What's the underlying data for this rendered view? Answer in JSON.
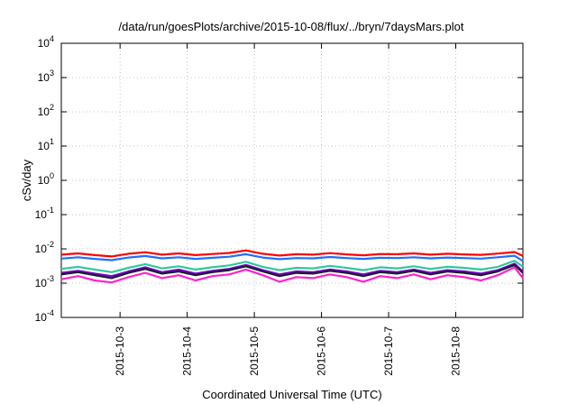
{
  "chart_data": {
    "type": "line",
    "title": "/data/run/goesPlots/archive/2015-10-08/flux/../bryn/7daysMars.plot",
    "xlabel": "Coordinated Universal Time (UTC)",
    "ylabel": "cSv/day",
    "yscale": "log",
    "ylim": [
      0.0001,
      10000
    ],
    "xlim": [
      "2015-10-02T03:00",
      "2015-10-09T00:00"
    ],
    "grid": true,
    "y_ticks": [
      {
        "value": 0.0001,
        "base": "10",
        "exp": "-4"
      },
      {
        "value": 0.001,
        "base": "10",
        "exp": "-3"
      },
      {
        "value": 0.01,
        "base": "10",
        "exp": "-2"
      },
      {
        "value": 0.1,
        "base": "10",
        "exp": "-1"
      },
      {
        "value": 1,
        "base": "10",
        "exp": "0"
      },
      {
        "value": 10,
        "base": "10",
        "exp": "1"
      },
      {
        "value": 100,
        "base": "10",
        "exp": "2"
      },
      {
        "value": 1000,
        "base": "10",
        "exp": "3"
      },
      {
        "value": 10000,
        "base": "10",
        "exp": "4"
      }
    ],
    "x_ticks": [
      "2015-10-3",
      "2015-10-4",
      "2015-10-5",
      "2015-10-6",
      "2015-10-7",
      "2015-10-8"
    ],
    "x_tick_times": [
      "2015-10-03T00:00",
      "2015-10-04T00:00",
      "2015-10-05T00:00",
      "2015-10-06T00:00",
      "2015-10-07T00:00",
      "2015-10-08T00:00"
    ],
    "x_times": [
      "2015-10-02T03:00",
      "2015-10-02T09:00",
      "2015-10-02T15:00",
      "2015-10-02T21:00",
      "2015-10-03T03:00",
      "2015-10-03T09:00",
      "2015-10-03T15:00",
      "2015-10-03T21:00",
      "2015-10-04T03:00",
      "2015-10-04T09:00",
      "2015-10-04T15:00",
      "2015-10-04T21:00",
      "2015-10-05T03:00",
      "2015-10-05T09:00",
      "2015-10-05T15:00",
      "2015-10-05T21:00",
      "2015-10-06T03:00",
      "2015-10-06T09:00",
      "2015-10-06T15:00",
      "2015-10-06T21:00",
      "2015-10-07T03:00",
      "2015-10-07T09:00",
      "2015-10-07T15:00",
      "2015-10-07T21:00",
      "2015-10-08T03:00",
      "2015-10-08T09:00",
      "2015-10-08T15:00",
      "2015-10-08T21:00",
      "2015-10-09T00:00"
    ],
    "series": [
      {
        "color": "#ff0000",
        "values": [
          0.0068,
          0.0074,
          0.0066,
          0.006,
          0.0072,
          0.008,
          0.0068,
          0.0074,
          0.0066,
          0.0071,
          0.0076,
          0.009,
          0.0072,
          0.0064,
          0.007,
          0.0068,
          0.0075,
          0.0069,
          0.0065,
          0.0071,
          0.007,
          0.0074,
          0.0068,
          0.0072,
          0.0069,
          0.0067,
          0.0073,
          0.0081,
          0.0062
        ]
      },
      {
        "color": "#1f6fff",
        "values": [
          0.0052,
          0.0057,
          0.0051,
          0.0047,
          0.0056,
          0.0062,
          0.0053,
          0.0057,
          0.0051,
          0.0055,
          0.0059,
          0.007,
          0.0056,
          0.005,
          0.0054,
          0.0053,
          0.0058,
          0.0054,
          0.0051,
          0.0055,
          0.0054,
          0.0057,
          0.0053,
          0.0056,
          0.0054,
          0.0052,
          0.0057,
          0.0063,
          0.0044
        ]
      },
      {
        "color": "#2ec99e",
        "values": [
          0.0026,
          0.003,
          0.0025,
          0.0021,
          0.0028,
          0.0036,
          0.0027,
          0.0031,
          0.0025,
          0.0029,
          0.0033,
          0.0042,
          0.003,
          0.0024,
          0.0028,
          0.0027,
          0.0032,
          0.0028,
          0.0024,
          0.0029,
          0.0027,
          0.0031,
          0.0026,
          0.003,
          0.0028,
          0.0025,
          0.003,
          0.0045,
          0.003
        ]
      },
      {
        "color": "#7a00c8",
        "values": [
          0.002,
          0.0023,
          0.0019,
          0.0016,
          0.0022,
          0.0029,
          0.0021,
          0.0025,
          0.0019,
          0.0023,
          0.0026,
          0.0034,
          0.0024,
          0.0018,
          0.0022,
          0.0021,
          0.0025,
          0.0022,
          0.0018,
          0.0023,
          0.0021,
          0.0025,
          0.002,
          0.0024,
          0.0022,
          0.0019,
          0.0024,
          0.0037,
          0.0022
        ]
      },
      {
        "color": "#1a1a33",
        "values": [
          0.0018,
          0.0021,
          0.0017,
          0.0014,
          0.002,
          0.0026,
          0.0019,
          0.0022,
          0.0017,
          0.0021,
          0.0024,
          0.0031,
          0.0022,
          0.0016,
          0.002,
          0.0019,
          0.0023,
          0.002,
          0.0016,
          0.0021,
          0.0019,
          0.0023,
          0.0018,
          0.0022,
          0.002,
          0.0017,
          0.0022,
          0.0034,
          0.002
        ]
      },
      {
        "color": "#ff22cc",
        "values": [
          0.0013,
          0.0016,
          0.0012,
          0.00105,
          0.0015,
          0.002,
          0.0014,
          0.0017,
          0.0012,
          0.0016,
          0.0018,
          0.0025,
          0.0017,
          0.0011,
          0.0015,
          0.0014,
          0.0018,
          0.0015,
          0.0011,
          0.0016,
          0.0014,
          0.0018,
          0.0013,
          0.0017,
          0.0015,
          0.0012,
          0.0017,
          0.0029,
          0.0014
        ]
      }
    ]
  }
}
